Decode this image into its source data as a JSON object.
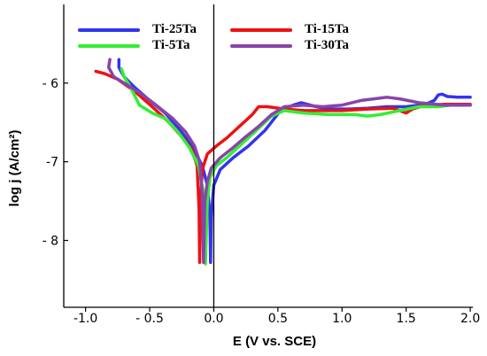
{
  "chart_data": {
    "type": "line",
    "title": "",
    "xlabel": "E (V vs. SCE)",
    "ylabel": "log j (A/cm²)",
    "xlim": [
      -1.17,
      2.02
    ],
    "ylim": [
      -8.85,
      -5.0
    ],
    "xticks": [
      {
        "value": -1.0,
        "label": "-1.0"
      },
      {
        "value": -0.5,
        "label": "- 0.5"
      },
      {
        "value": 0.0,
        "label": "0.0"
      },
      {
        "value": 0.5,
        "label": "0.5"
      },
      {
        "value": 1.0,
        "label": "1.0"
      },
      {
        "value": 1.5,
        "label": "1.5"
      },
      {
        "value": 2.0,
        "label": "2.0"
      }
    ],
    "yticks": [
      {
        "value": -6,
        "label": "- 6"
      },
      {
        "value": -7,
        "label": "-7"
      },
      {
        "value": -8,
        "label": "- 8"
      }
    ],
    "zero_line_x": 0.0,
    "grid": false,
    "legend_position": "top",
    "series": [
      {
        "name": "Ti-25Ta",
        "color": "#3333ee",
        "points": [
          [
            -0.74,
            -5.7
          ],
          [
            -0.74,
            -5.8
          ],
          [
            -0.7,
            -5.92
          ],
          [
            -0.62,
            -6.05
          ],
          [
            -0.5,
            -6.22
          ],
          [
            -0.38,
            -6.38
          ],
          [
            -0.27,
            -6.58
          ],
          [
            -0.17,
            -6.8
          ],
          [
            -0.09,
            -7.05
          ],
          [
            -0.05,
            -7.3
          ],
          [
            -0.03,
            -7.7
          ],
          [
            -0.025,
            -8.28
          ],
          [
            -0.02,
            -7.7
          ],
          [
            0.0,
            -7.3
          ],
          [
            0.05,
            -7.1
          ],
          [
            0.15,
            -6.95
          ],
          [
            0.27,
            -6.8
          ],
          [
            0.4,
            -6.6
          ],
          [
            0.52,
            -6.35
          ],
          [
            0.62,
            -6.28
          ],
          [
            0.68,
            -6.25
          ],
          [
            0.8,
            -6.3
          ],
          [
            0.9,
            -6.33
          ],
          [
            1.05,
            -6.33
          ],
          [
            1.2,
            -6.32
          ],
          [
            1.35,
            -6.3
          ],
          [
            1.5,
            -6.3
          ],
          [
            1.65,
            -6.27
          ],
          [
            1.72,
            -6.22
          ],
          [
            1.75,
            -6.15
          ],
          [
            1.78,
            -6.14
          ],
          [
            1.82,
            -6.17
          ],
          [
            1.9,
            -6.18
          ],
          [
            2.0,
            -6.18
          ]
        ]
      },
      {
        "name": "Ti-15Ta",
        "color": "#ee1111",
        "points": [
          [
            -0.92,
            -5.85
          ],
          [
            -0.85,
            -5.88
          ],
          [
            -0.75,
            -5.95
          ],
          [
            -0.62,
            -6.1
          ],
          [
            -0.48,
            -6.3
          ],
          [
            -0.35,
            -6.5
          ],
          [
            -0.24,
            -6.7
          ],
          [
            -0.17,
            -6.85
          ],
          [
            -0.13,
            -7.05
          ],
          [
            -0.115,
            -7.6
          ],
          [
            -0.11,
            -8.28
          ],
          [
            -0.105,
            -7.6
          ],
          [
            -0.09,
            -7.1
          ],
          [
            -0.05,
            -6.9
          ],
          [
            0.02,
            -6.8
          ],
          [
            0.1,
            -6.7
          ],
          [
            0.2,
            -6.55
          ],
          [
            0.3,
            -6.4
          ],
          [
            0.35,
            -6.3
          ],
          [
            0.42,
            -6.3
          ],
          [
            0.55,
            -6.33
          ],
          [
            0.7,
            -6.35
          ],
          [
            0.85,
            -6.35
          ],
          [
            1.0,
            -6.35
          ],
          [
            1.2,
            -6.33
          ],
          [
            1.4,
            -6.32
          ],
          [
            1.5,
            -6.38
          ],
          [
            1.55,
            -6.33
          ],
          [
            1.65,
            -6.28
          ],
          [
            1.8,
            -6.27
          ],
          [
            2.0,
            -6.27
          ]
        ]
      },
      {
        "name": "Ti-5Ta",
        "color": "#33ee33",
        "points": [
          [
            -0.72,
            -5.82
          ],
          [
            -0.7,
            -5.92
          ],
          [
            -0.65,
            -6.05
          ],
          [
            -0.62,
            -6.15
          ],
          [
            -0.58,
            -6.28
          ],
          [
            -0.48,
            -6.38
          ],
          [
            -0.38,
            -6.45
          ],
          [
            -0.28,
            -6.62
          ],
          [
            -0.19,
            -6.82
          ],
          [
            -0.12,
            -7.05
          ],
          [
            -0.08,
            -7.4
          ],
          [
            -0.065,
            -8.3
          ],
          [
            -0.05,
            -7.5
          ],
          [
            -0.03,
            -7.2
          ],
          [
            0.02,
            -7.05
          ],
          [
            0.1,
            -6.95
          ],
          [
            0.2,
            -6.8
          ],
          [
            0.32,
            -6.62
          ],
          [
            0.45,
            -6.42
          ],
          [
            0.55,
            -6.35
          ],
          [
            0.7,
            -6.38
          ],
          [
            0.9,
            -6.4
          ],
          [
            1.1,
            -6.4
          ],
          [
            1.2,
            -6.42
          ],
          [
            1.3,
            -6.4
          ],
          [
            1.45,
            -6.35
          ],
          [
            1.6,
            -6.3
          ],
          [
            1.75,
            -6.3
          ],
          [
            1.85,
            -6.28
          ],
          [
            2.0,
            -6.28
          ]
        ]
      },
      {
        "name": "Ti-30Ta",
        "color": "#8844aa",
        "points": [
          [
            -0.81,
            -5.7
          ],
          [
            -0.82,
            -5.8
          ],
          [
            -0.78,
            -5.92
          ],
          [
            -0.7,
            -6.0
          ],
          [
            -0.58,
            -6.12
          ],
          [
            -0.45,
            -6.28
          ],
          [
            -0.32,
            -6.45
          ],
          [
            -0.22,
            -6.62
          ],
          [
            -0.15,
            -6.8
          ],
          [
            -0.11,
            -7.0
          ],
          [
            -0.09,
            -7.4
          ],
          [
            -0.08,
            -8.28
          ],
          [
            -0.07,
            -7.5
          ],
          [
            -0.05,
            -7.25
          ],
          [
            -0.02,
            -7.08
          ],
          [
            0.05,
            -6.95
          ],
          [
            0.15,
            -6.82
          ],
          [
            0.25,
            -6.68
          ],
          [
            0.35,
            -6.55
          ],
          [
            0.45,
            -6.4
          ],
          [
            0.55,
            -6.3
          ],
          [
            0.7,
            -6.28
          ],
          [
            0.85,
            -6.3
          ],
          [
            1.0,
            -6.28
          ],
          [
            1.15,
            -6.22
          ],
          [
            1.25,
            -6.2
          ],
          [
            1.35,
            -6.18
          ],
          [
            1.45,
            -6.2
          ],
          [
            1.6,
            -6.25
          ],
          [
            1.8,
            -6.28
          ],
          [
            2.0,
            -6.28
          ]
        ]
      }
    ]
  }
}
